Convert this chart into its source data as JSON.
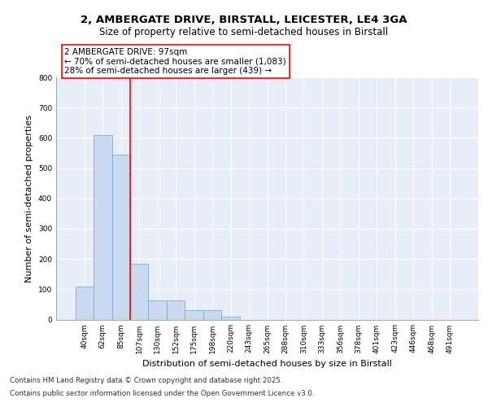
{
  "title_line1": "2, AMBERGATE DRIVE, BIRSTALL, LEICESTER, LE4 3GA",
  "title_line2": "Size of property relative to semi-detached houses in Birstall",
  "xlabel": "Distribution of semi-detached houses by size in Birstall",
  "ylabel": "Number of semi-detached properties",
  "categories": [
    "40sqm",
    "62sqm",
    "85sqm",
    "107sqm",
    "130sqm",
    "152sqm",
    "175sqm",
    "198sqm",
    "220sqm",
    "243sqm",
    "265sqm",
    "288sqm",
    "310sqm",
    "333sqm",
    "356sqm",
    "378sqm",
    "401sqm",
    "423sqm",
    "446sqm",
    "468sqm",
    "491sqm"
  ],
  "values": [
    110,
    610,
    545,
    185,
    62,
    62,
    30,
    30,
    10,
    0,
    0,
    0,
    0,
    0,
    0,
    0,
    0,
    0,
    0,
    0,
    0
  ],
  "bar_color": "#c9d9ef",
  "bar_edge_color": "#7aadd4",
  "vline_x": 2.5,
  "vline_color": "red",
  "annotation_title": "2 AMBERGATE DRIVE: 97sqm",
  "annotation_line1": "← 70% of semi-detached houses are smaller (1,083)",
  "annotation_line2": "28% of semi-detached houses are larger (439) →",
  "annotation_box_color": "red",
  "ylim_max": 800,
  "yticks": [
    0,
    100,
    200,
    300,
    400,
    500,
    600,
    700,
    800
  ],
  "background_color": "#e8eef8",
  "grid_color": "white",
  "footer_line1": "Contains HM Land Registry data © Crown copyright and database right 2025.",
  "footer_line2": "Contains public sector information licensed under the Open Government Licence v3.0.",
  "title_fontsize": 9.5,
  "subtitle_fontsize": 8.5,
  "axis_label_fontsize": 8,
  "tick_fontsize": 6.5,
  "annotation_fontsize": 7.5,
  "footer_fontsize": 6.2
}
